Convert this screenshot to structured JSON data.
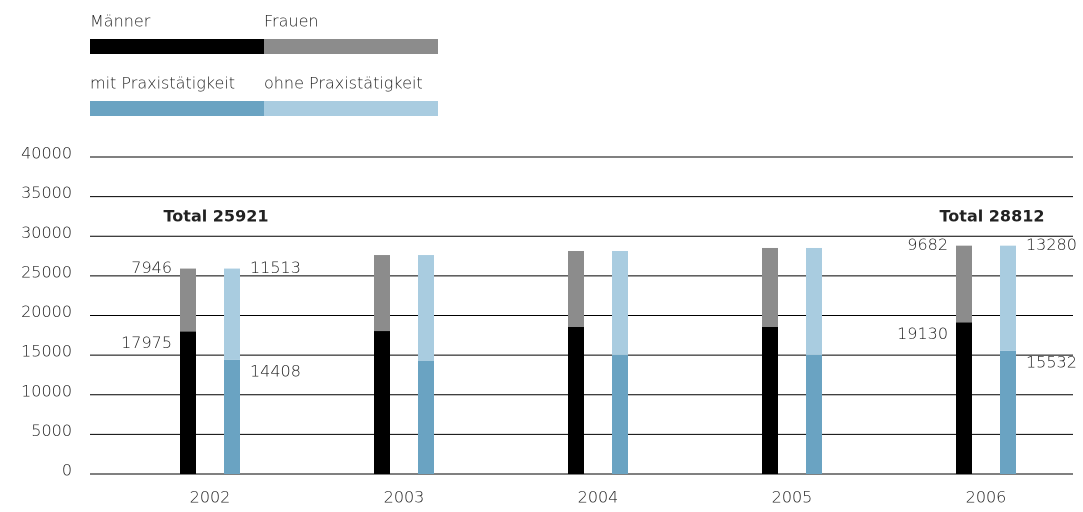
{
  "chart_data": {
    "type": "bar",
    "categories": [
      "2002",
      "2003",
      "2004",
      "2005",
      "2006"
    ],
    "series": [
      {
        "name": "Männer",
        "color": "#000000",
        "stack": "gender",
        "values": [
          17975,
          18040,
          18550,
          18550,
          19130
        ],
        "value_labels": [
          "17975",
          null,
          null,
          null,
          "19130"
        ]
      },
      {
        "name": "Frauen",
        "color": "#8c8c8c",
        "stack": "gender",
        "values": [
          7946,
          9590,
          9590,
          9970,
          9682
        ],
        "value_labels": [
          "7946",
          null,
          null,
          null,
          "9682"
        ]
      },
      {
        "name": "mit Praxistätigkeit",
        "color": "#6aa3c2",
        "stack": "practice",
        "values": [
          14408,
          14260,
          15020,
          15020,
          15532
        ],
        "value_labels": [
          "14408",
          null,
          null,
          null,
          "15532"
        ]
      },
      {
        "name": "ohne Praxistätigkeit",
        "color": "#a9cce0",
        "stack": "practice",
        "values": [
          11513,
          13370,
          13120,
          13500,
          13280
        ],
        "value_labels": [
          "11513",
          null,
          null,
          null,
          "13280"
        ]
      }
    ],
    "annotations": [
      {
        "text": "Total 25921",
        "category": "2002"
      },
      {
        "text": "Total 28812",
        "category": "2006"
      }
    ],
    "ylim": [
      0,
      40000
    ],
    "yticks": [
      0,
      5000,
      10000,
      15000,
      20000,
      25000,
      30000,
      35000,
      40000
    ],
    "grid": true
  }
}
